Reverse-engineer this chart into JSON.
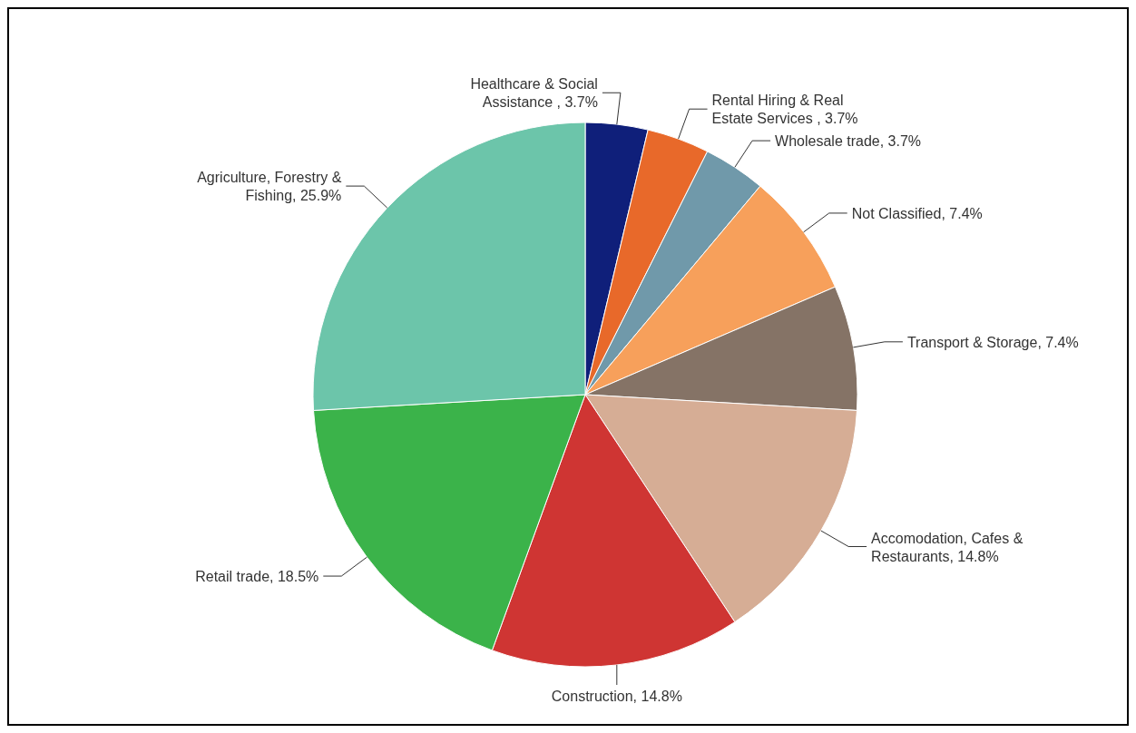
{
  "chart_data": {
    "type": "pie",
    "categories": [
      "Healthcare & Social Assistance ",
      "Rental Hiring & Real Estate Services ",
      "Wholesale trade",
      "Not Classified",
      "Transport & Storage",
      "Accomodation, Cafes & Restaurants",
      "Construction",
      "Retail trade",
      "Agriculture, Forestry & Fishing"
    ],
    "values": [
      3.7,
      3.7,
      3.7,
      7.4,
      7.4,
      14.8,
      14.8,
      18.5,
      25.9
    ],
    "value_labels": [
      "3.7%",
      "3.7%",
      "3.7%",
      "7.4%",
      "7.4%",
      "14.8%",
      "14.8%",
      "18.5%",
      "25.9%"
    ],
    "colors": [
      "#0f1f7a",
      "#e8692a",
      "#7099aa",
      "#f7a05b",
      "#857366",
      "#d6ad95",
      "#cf3533",
      "#3bb34a",
      "#6cc5aa"
    ],
    "legend": false
  }
}
